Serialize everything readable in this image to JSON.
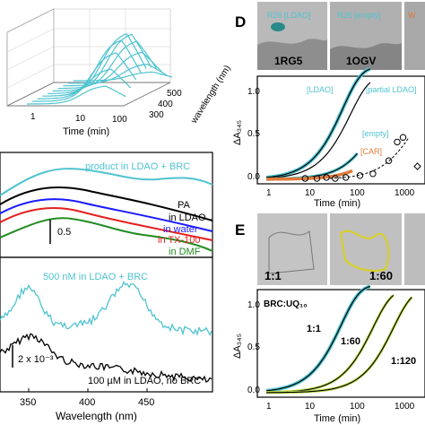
{
  "panel_3d": {
    "xlabel": "Time (min)",
    "ylabel": "wavelength (nm)",
    "x_ticks": [
      "1",
      "10",
      "100"
    ],
    "y_ticks": [
      "300",
      "400",
      "500"
    ],
    "series_color": "#4fc3d0"
  },
  "panel_spectra": {
    "labels": {
      "product": "product in LDAO + BRC",
      "pa": "PA",
      "ldao": "in LDAO",
      "water": "in water",
      "tx100": "in TX-100",
      "dmf": "in DMF"
    },
    "scale": "0.5",
    "colors": {
      "product": "#4fc3d0",
      "ldao": "#000000",
      "water": "#1a1aff",
      "tx100": "#e52020",
      "dmf": "#228b22"
    }
  },
  "panel_diff": {
    "label_top": "500 nM in LDAO + BRC",
    "label_bottom": "100 µM in LDAO, no BRC",
    "scale": "2 x 10⁻³",
    "xlabel": "Wavelength (nm)",
    "x_ticks": [
      "350",
      "400",
      "450"
    ]
  },
  "panel_D": {
    "letter": "D",
    "pdb": [
      "1RG5",
      "1OGV"
    ],
    "struct_labels": [
      "R26 [LDAO]",
      "R26 [empty]"
    ],
    "ylabel": "ΔA₃₄₅",
    "xlabel": "Time (min)",
    "x_ticks": [
      "1",
      "10",
      "100",
      "1000"
    ],
    "y_ticks": [
      "0.0",
      "0.5",
      "1.0"
    ],
    "curve_labels": {
      "ldao": "[LDAO]",
      "partial": "[partial LDAO]",
      "empty": "[empty]",
      "car": "[CAR]"
    },
    "colors": {
      "ldao": "#4fc3d0",
      "empty": "#4fc3d0",
      "car": "#e07b39"
    }
  },
  "panel_E": {
    "letter": "E",
    "ratios": [
      "1:1",
      "1:60"
    ],
    "brc_label": "BRC:UQ₁₀",
    "curve_labels": [
      "1:1",
      "1:60",
      "1:120"
    ],
    "ylabel": "ΔA₃₄₅",
    "xlabel": "Time (min)",
    "x_ticks": [
      "1",
      "10",
      "100",
      "1000"
    ],
    "y_ticks": [
      "0.0",
      "0.5",
      "1.0"
    ],
    "colors": {
      "c1": "#4fc3d0",
      "c60": "#b8d84a",
      "c120": "#b8d84a"
    }
  }
}
